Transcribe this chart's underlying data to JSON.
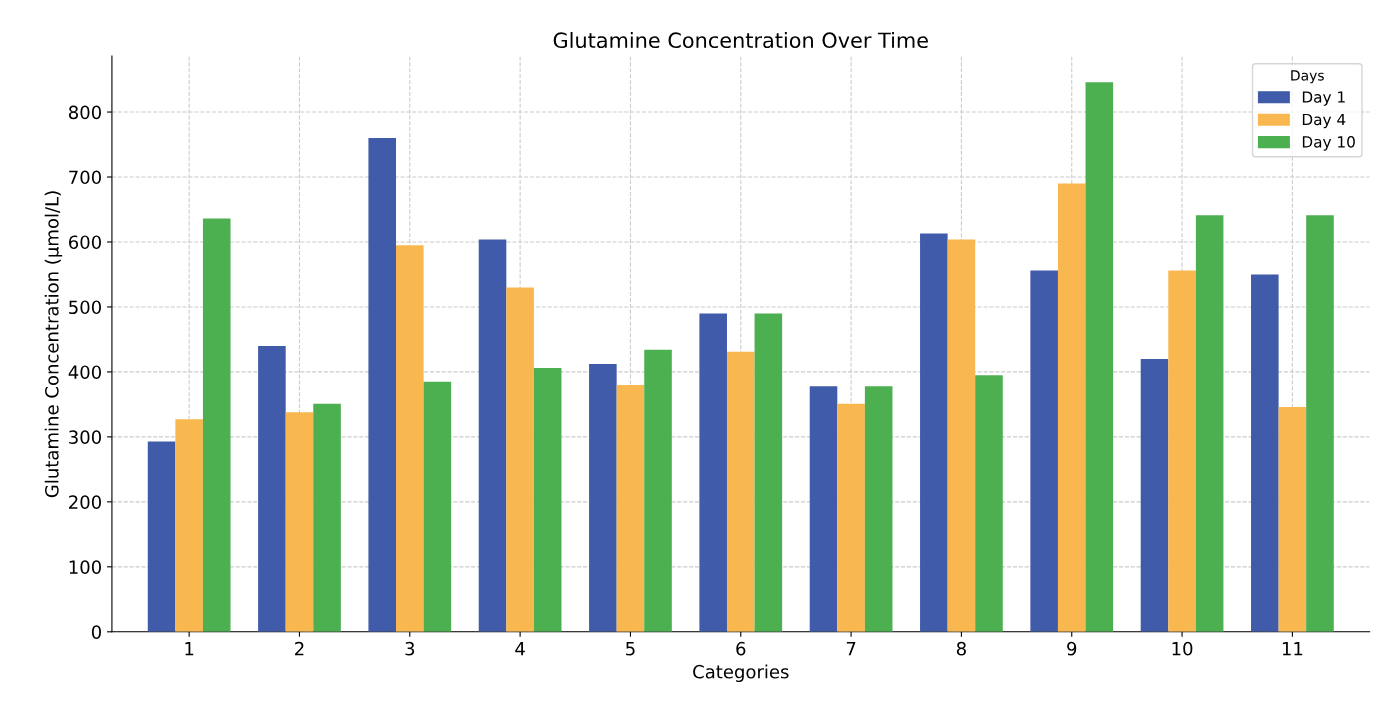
{
  "chart_data": {
    "type": "bar",
    "title": "Glutamine Concentration Over Time",
    "xlabel": "Categories",
    "ylabel": "Glutamine Concentration (µmol/L)",
    "legend_title": "Days",
    "categories": [
      "1",
      "2",
      "3",
      "4",
      "5",
      "6",
      "7",
      "8",
      "9",
      "10",
      "11"
    ],
    "series": [
      {
        "name": "Day 1",
        "color": "#3f5ba9",
        "values": [
          293,
          440,
          760,
          604,
          412,
          490,
          378,
          613,
          556,
          420,
          550
        ]
      },
      {
        "name": "Day 4",
        "color": "#f9b84f",
        "values": [
          327,
          338,
          595,
          530,
          380,
          431,
          351,
          604,
          690,
          556,
          346
        ]
      },
      {
        "name": "Day 10",
        "color": "#4caf50",
        "values": [
          636,
          351,
          385,
          406,
          434,
          490,
          378,
          395,
          846,
          641,
          641
        ]
      }
    ],
    "ylim": [
      0,
      886
    ],
    "yticks": [
      0,
      100,
      200,
      300,
      400,
      500,
      600,
      700,
      800
    ],
    "grid": true,
    "legend": "top right"
  }
}
